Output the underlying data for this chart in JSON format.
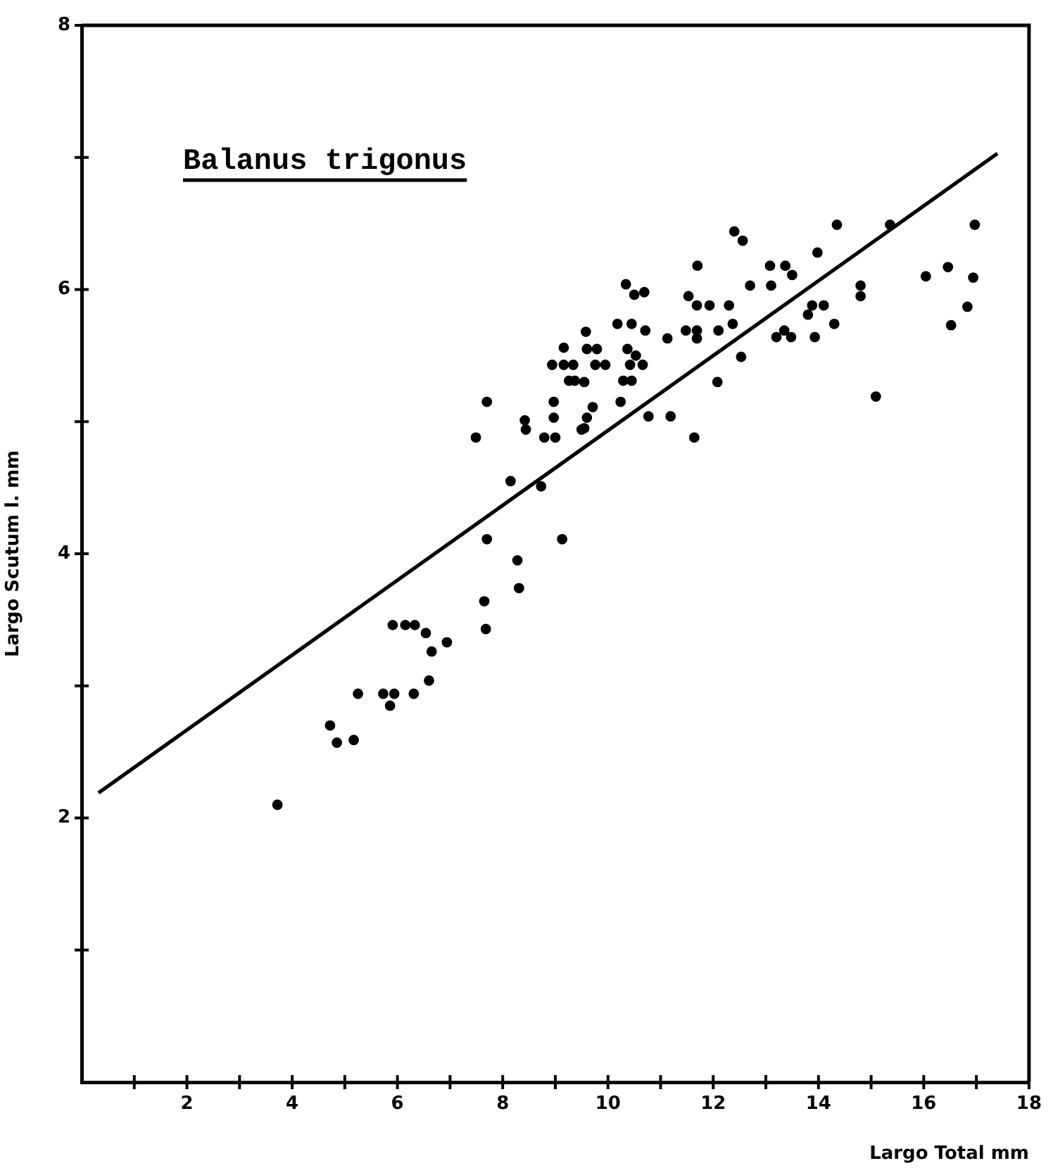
{
  "chart_data": {
    "type": "scatter",
    "title": "Balanus trigonus",
    "xlabel": "Largo Total mm",
    "ylabel": "Largo Scutum l. mm",
    "xlim": [
      0,
      18
    ],
    "ylim": [
      0,
      8
    ],
    "xticks": [
      {
        "value": 1,
        "label": null
      },
      2,
      {
        "value": 3,
        "label": null
      },
      4,
      {
        "value": 5,
        "label": null
      },
      6,
      {
        "value": 7,
        "label": null
      },
      8,
      {
        "value": 9,
        "label": null
      },
      10,
      {
        "value": 11,
        "label": null
      },
      12,
      {
        "value": 13,
        "label": null
      },
      14,
      {
        "value": 15,
        "label": null
      },
      16,
      {
        "value": 17,
        "label": null
      },
      18
    ],
    "yticks": [
      {
        "value": 1,
        "label": null
      },
      2,
      {
        "value": 3,
        "label": null
      },
      4,
      {
        "value": 5,
        "label": null
      },
      6,
      {
        "value": 7,
        "label": null
      },
      8
    ],
    "grid": false,
    "legend": false,
    "marker": "circle",
    "series": [
      {
        "color": "#000000",
        "x": [
          3.72,
          4.72,
          4.85,
          5.17,
          5.25,
          5.73,
          5.86,
          5.94,
          6.31,
          6.6,
          5.91,
          6.15,
          6.33,
          6.54,
          6.65,
          6.94,
          7.68,
          7.65,
          7.7,
          8.28,
          8.31,
          9.13,
          8.15,
          8.73,
          7.49,
          8.44,
          8.79,
          9.0,
          9.5,
          7.7,
          8.42,
          8.94,
          9.16,
          9.16,
          9.34,
          8.97,
          8.97,
          9.37,
          9.26,
          12.4,
          12.56,
          14.35,
          11.7,
          13.98,
          13.08,
          13.37,
          13.5,
          12.7,
          13.1,
          10.34,
          10.5,
          10.69,
          11.53,
          11.69,
          11.93,
          12.3,
          10.18,
          10.45,
          12.37,
          10.71,
          11.48,
          11.69,
          11.69,
          12.1,
          11.13,
          9.58,
          9.6,
          9.79,
          10.37,
          10.53,
          9.76,
          9.95,
          10.42,
          10.66,
          10.29,
          10.45,
          9.55,
          12.53,
          12.08,
          10.24,
          9.71,
          9.6,
          10.77,
          11.19,
          11.64,
          9.55,
          13.88,
          14.1,
          13.8,
          14.3,
          13.35,
          13.2,
          13.48,
          13.93,
          14.8,
          14.8,
          15.36,
          16.97,
          16.04,
          16.46,
          16.94,
          16.83,
          16.52,
          15.09
        ],
        "values": [
          2.1,
          2.7,
          2.57,
          2.59,
          2.94,
          2.94,
          2.85,
          2.94,
          2.94,
          3.04,
          3.46,
          3.46,
          3.46,
          3.4,
          3.26,
          3.33,
          3.43,
          3.64,
          4.11,
          3.95,
          3.74,
          4.11,
          4.55,
          4.51,
          4.88,
          4.94,
          4.88,
          4.88,
          4.94,
          5.15,
          5.01,
          5.43,
          5.43,
          5.56,
          5.43,
          5.15,
          5.03,
          5.31,
          5.31,
          6.44,
          6.37,
          6.49,
          6.18,
          6.28,
          6.18,
          6.18,
          6.11,
          6.03,
          6.03,
          6.04,
          5.96,
          5.98,
          5.95,
          5.88,
          5.88,
          5.88,
          5.74,
          5.74,
          5.74,
          5.69,
          5.69,
          5.69,
          5.63,
          5.69,
          5.63,
          5.68,
          5.55,
          5.55,
          5.55,
          5.5,
          5.43,
          5.43,
          5.43,
          5.43,
          5.31,
          5.31,
          5.3,
          5.49,
          5.3,
          5.15,
          5.11,
          5.03,
          5.04,
          5.04,
          4.88,
          4.95,
          5.88,
          5.88,
          5.81,
          5.74,
          5.69,
          5.64,
          5.64,
          5.64,
          6.03,
          5.95,
          6.49,
          6.49,
          6.1,
          6.17,
          6.09,
          5.87,
          5.73,
          5.19
        ]
      },
      {
        "type": "line",
        "color": "#000000",
        "x": [
          0.32,
          17.4
        ],
        "values": [
          2.19,
          7.03
        ],
        "marker": "none",
        "line_style": "solid"
      }
    ]
  }
}
